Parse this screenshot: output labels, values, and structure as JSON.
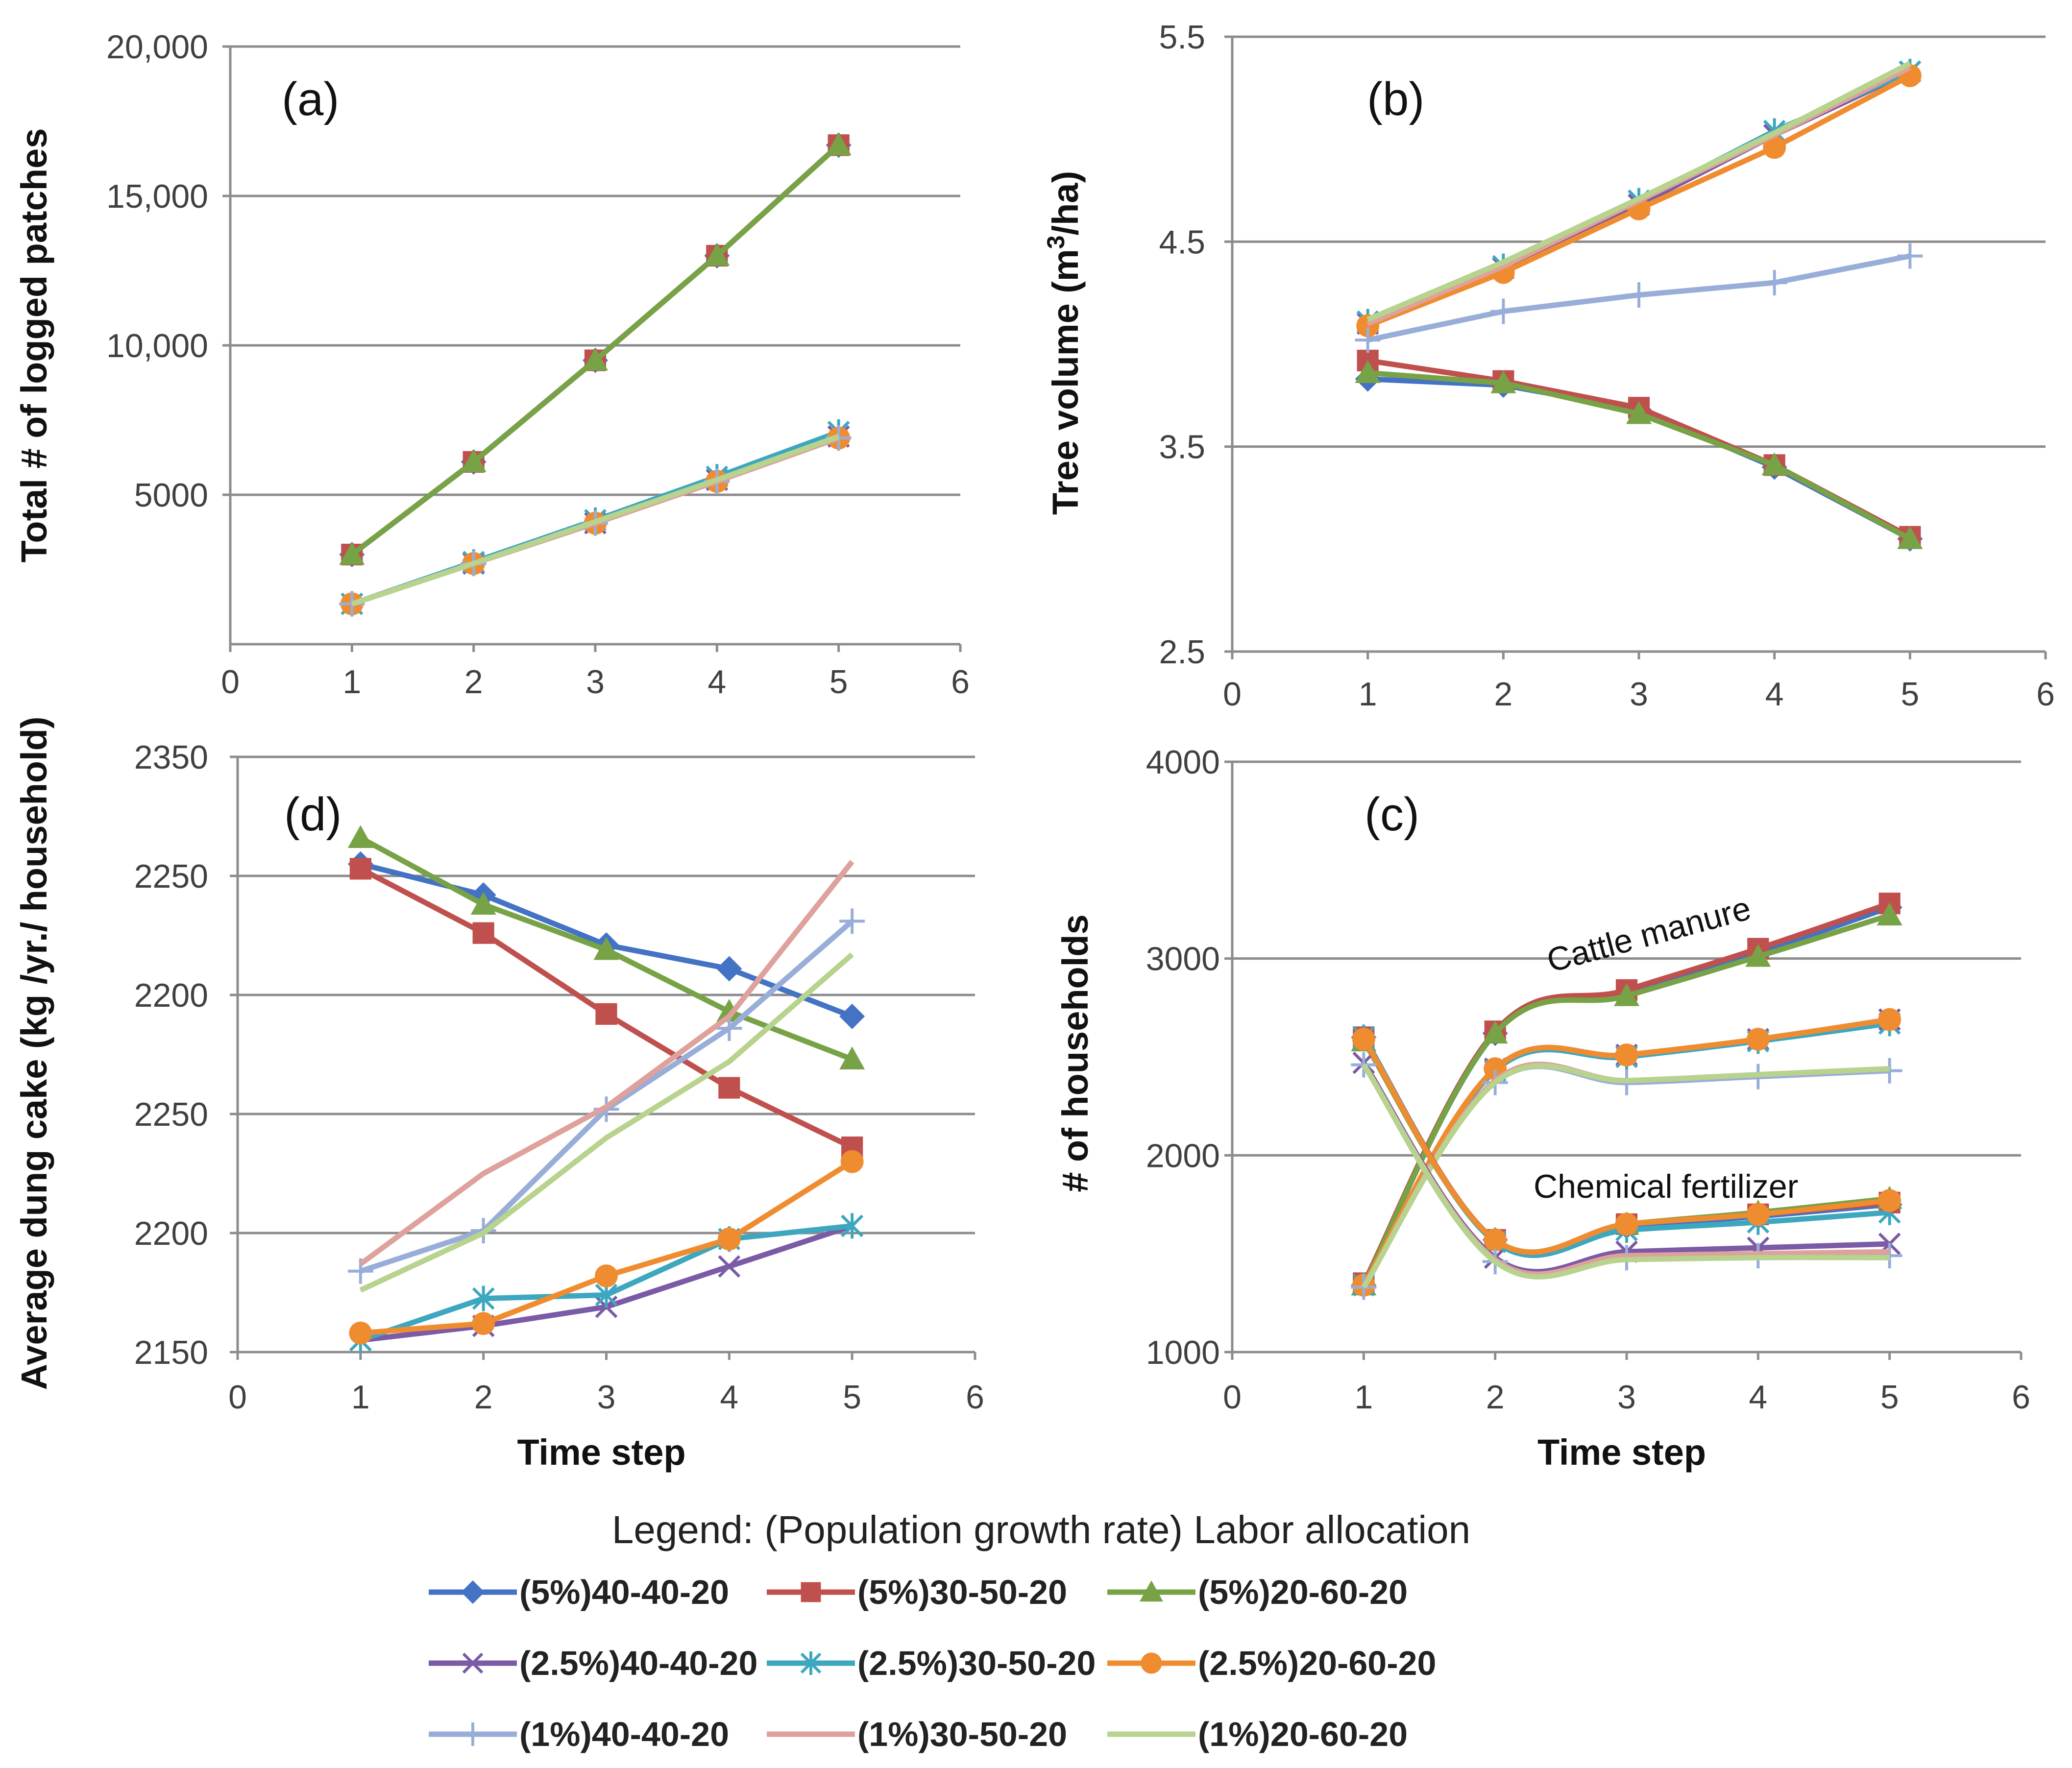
{
  "colors": {
    "s5_40": "#4472c4",
    "s5_30": "#c0504d",
    "s5_20": "#77a246",
    "s25_40": "#7b5aa6",
    "s25_30": "#3ea7c0",
    "s25_20": "#f08c30",
    "s1_40": "#98aed8",
    "s1_30": "#dea19c",
    "s1_20": "#b7d38e"
  },
  "legend": {
    "title": "Legend: (Population growth rate) Labor allocation",
    "items": [
      {
        "key": "s5_40",
        "label": "(5%)40-40-20",
        "marker": "diamond"
      },
      {
        "key": "s5_30",
        "label": "(5%)30-50-20",
        "marker": "square"
      },
      {
        "key": "s5_20",
        "label": "(5%)20-60-20",
        "marker": "triangle"
      },
      {
        "key": "s25_40",
        "label": "(2.5%)40-40-20",
        "marker": "x"
      },
      {
        "key": "s25_30",
        "label": "(2.5%)30-50-20",
        "marker": "star"
      },
      {
        "key": "s25_20",
        "label": "(2.5%)20-60-20",
        "marker": "circle"
      },
      {
        "key": "s1_40",
        "label": "(1%)40-40-20",
        "marker": "plus"
      },
      {
        "key": "s1_30",
        "label": "(1%)30-50-20",
        "marker": "none"
      },
      {
        "key": "s1_20",
        "label": "(1%)20-60-20",
        "marker": "none"
      }
    ]
  },
  "chart_data": [
    {
      "id": "a",
      "type": "line",
      "panel_label": "(a)",
      "ylabel": "Total # of logged patches",
      "xlabel": "",
      "xlim": [
        0,
        6
      ],
      "ylim": [
        0,
        20000
      ],
      "xticks": [
        0,
        1,
        2,
        3,
        4,
        5,
        6
      ],
      "yticks": [
        5000,
        10000,
        15000,
        20000
      ],
      "ytick_labels": [
        "5000",
        "10,000",
        "15,000",
        "20,000"
      ],
      "x": [
        1,
        2,
        3,
        4,
        5
      ],
      "series": [
        {
          "key": "s5_40",
          "name": "(5%)40-40-20",
          "values": [
            3000,
            6100,
            9500,
            13000,
            16700
          ]
        },
        {
          "key": "s5_30",
          "name": "(5%)30-50-20",
          "values": [
            3000,
            6100,
            9500,
            13000,
            16700
          ]
        },
        {
          "key": "s5_20",
          "name": "(5%)20-60-20",
          "values": [
            3000,
            6100,
            9500,
            13000,
            16700
          ]
        },
        {
          "key": "s25_40",
          "name": "(2.5%)40-40-20",
          "values": [
            1350,
            2700,
            4050,
            5500,
            6950
          ]
        },
        {
          "key": "s25_30",
          "name": "(2.5%)30-50-20",
          "values": [
            1350,
            2750,
            4150,
            5600,
            7100
          ]
        },
        {
          "key": "s25_20",
          "name": "(2.5%)20-60-20",
          "values": [
            1350,
            2700,
            4050,
            5450,
            6900
          ]
        },
        {
          "key": "s1_40",
          "name": "(1%)40-40-20",
          "values": [
            1350,
            2700,
            4050,
            5450,
            6900
          ]
        },
        {
          "key": "s1_30",
          "name": "(1%)30-50-20",
          "values": [
            1350,
            2700,
            4050,
            5450,
            6900
          ]
        },
        {
          "key": "s1_20",
          "name": "(1%)20-60-20",
          "values": [
            1350,
            2700,
            4100,
            5500,
            6950
          ]
        }
      ]
    },
    {
      "id": "b",
      "type": "line",
      "panel_label": "(b)",
      "ylabel": "Tree volume (m3/ha)",
      "ylabel_main": "Tree volume (m",
      "ylabel_sup": "3",
      "ylabel_tail": "/ha)",
      "xlabel": "",
      "xlim": [
        0,
        6
      ],
      "ylim": [
        2.5,
        5.5
      ],
      "xticks": [
        0,
        1,
        2,
        3,
        4,
        5,
        6
      ],
      "yticks": [
        2.5,
        3.5,
        4.5,
        5.5
      ],
      "ytick_labels": [
        "2.5",
        "3.5",
        "4.5",
        "5.5"
      ],
      "x": [
        1,
        2,
        3,
        4,
        5
      ],
      "series": [
        {
          "key": "s5_40",
          "name": "(5%)40-40-20",
          "values": [
            3.83,
            3.8,
            3.68,
            3.4,
            3.05
          ]
        },
        {
          "key": "s5_30",
          "name": "(5%)30-50-20",
          "values": [
            3.92,
            3.82,
            3.69,
            3.41,
            3.06
          ]
        },
        {
          "key": "s5_20",
          "name": "(5%)20-60-20",
          "values": [
            3.86,
            3.81,
            3.66,
            3.41,
            3.05
          ]
        },
        {
          "key": "s25_40",
          "name": "(2.5%)40-40-20",
          "values": [
            4.1,
            4.37,
            4.68,
            5.02,
            5.33
          ]
        },
        {
          "key": "s25_30",
          "name": "(2.5%)30-50-20",
          "values": [
            4.11,
            4.38,
            4.7,
            5.04,
            5.33
          ]
        },
        {
          "key": "s25_20",
          "name": "(2.5%)20-60-20",
          "values": [
            4.09,
            4.35,
            4.66,
            4.96,
            5.31
          ]
        },
        {
          "key": "s1_40",
          "name": "(1%)40-40-20",
          "values": [
            4.02,
            4.16,
            4.24,
            4.3,
            4.43
          ]
        },
        {
          "key": "s1_30",
          "name": "(1%)30-50-20",
          "values": [
            4.1,
            4.38,
            4.7,
            5.02,
            5.35
          ]
        },
        {
          "key": "s1_20",
          "name": "(1%)20-60-20",
          "values": [
            4.12,
            4.4,
            4.71,
            5.03,
            5.37
          ]
        }
      ]
    },
    {
      "id": "d",
      "type": "line",
      "panel_label": "(d)",
      "ylabel": "Average dung cake (kg /yr./ household)",
      "xlabel": "Time step",
      "xlim": [
        0,
        6
      ],
      "ylim": [
        0,
        5
      ],
      "xticks": [
        0,
        1,
        2,
        3,
        4,
        5,
        6
      ],
      "yticks": [
        0,
        1,
        2,
        3,
        4,
        5
      ],
      "ytick_labels": [
        "2150",
        "2200",
        "2250",
        "2200",
        "2250",
        "2350"
      ],
      "x": [
        1,
        2,
        3,
        4,
        5
      ],
      "series": [
        {
          "key": "s5_40",
          "name": "(5%)40-40-20",
          "values": [
            4.1,
            3.84,
            3.42,
            3.22,
            2.82
          ]
        },
        {
          "key": "s5_30",
          "name": "(5%)30-50-20",
          "values": [
            4.06,
            3.52,
            2.84,
            2.22,
            1.72
          ]
        },
        {
          "key": "s5_20",
          "name": "(5%)20-60-20",
          "values": [
            4.32,
            3.76,
            3.38,
            2.86,
            2.46
          ]
        },
        {
          "key": "s25_40",
          "name": "(2.5%)40-40-20",
          "values": [
            0.1,
            0.22,
            0.38,
            0.72,
            1.06
          ]
        },
        {
          "key": "s25_30",
          "name": "(2.5%)30-50-20",
          "values": [
            0.1,
            0.45,
            0.48,
            0.95,
            1.06
          ]
        },
        {
          "key": "s25_20",
          "name": "(2.5%)20-60-20",
          "values": [
            0.16,
            0.24,
            0.64,
            0.95,
            1.6
          ]
        },
        {
          "key": "s1_40",
          "name": "(1%)40-40-20",
          "values": [
            0.68,
            1.02,
            2.04,
            2.72,
            3.62
          ]
        },
        {
          "key": "s1_30",
          "name": "(1%)30-50-20",
          "values": [
            0.74,
            1.5,
            2.06,
            2.82,
            4.12
          ]
        },
        {
          "key": "s1_20",
          "name": "(1%)20-60-20",
          "values": [
            0.52,
            1.0,
            1.8,
            2.44,
            3.34
          ]
        }
      ]
    },
    {
      "id": "c",
      "type": "line",
      "panel_label": "(c)",
      "ylabel": "# of households",
      "xlabel": "Time step",
      "xlim": [
        0,
        6
      ],
      "ylim": [
        1000,
        4000
      ],
      "xticks": [
        0,
        1,
        2,
        3,
        4,
        5,
        6
      ],
      "yticks": [
        1000,
        2000,
        3000,
        4000
      ],
      "ytick_labels": [
        "1000",
        "2000",
        "3000",
        "4000"
      ],
      "annotations": [
        "Cattle manure",
        "Chemical fertilizer"
      ],
      "x": [
        1,
        2,
        3,
        4,
        5
      ],
      "series": [
        {
          "key": "s5_40",
          "name": "(5%)40-40-20 cattle manure",
          "values": [
            1340,
            2620,
            2830,
            3030,
            3260
          ]
        },
        {
          "key": "s5_30",
          "name": "(5%)30-50-20 cattle manure",
          "values": [
            1350,
            2630,
            2840,
            3050,
            3280
          ]
        },
        {
          "key": "s5_20",
          "name": "(5%)20-60-20 cattle manure",
          "values": [
            1340,
            2620,
            2810,
            3010,
            3220
          ]
        },
        {
          "key": "s25_40",
          "name": "(2.5%)40-40-20 cattle manure",
          "values": [
            1340,
            2440,
            2510,
            2590,
            2690
          ]
        },
        {
          "key": "s25_30",
          "name": "(2.5%)30-50-20 cattle manure",
          "values": [
            1340,
            2430,
            2500,
            2580,
            2670
          ]
        },
        {
          "key": "s25_20",
          "name": "(2.5%)20-60-20 cattle manure",
          "values": [
            1340,
            2440,
            2510,
            2590,
            2690
          ]
        },
        {
          "key": "s1_40",
          "name": "(1%)40-40-20 cattle manure",
          "values": [
            1330,
            2370,
            2370,
            2400,
            2430
          ]
        },
        {
          "key": "s1_30",
          "name": "(1%)30-50-20 cattle manure",
          "values": [
            1330,
            2380,
            2380,
            2410,
            2440
          ]
        },
        {
          "key": "s1_20",
          "name": "(1%)20-60-20 cattle manure",
          "values": [
            1330,
            2370,
            2380,
            2410,
            2440
          ]
        },
        {
          "key": "s5_40",
          "name": "(5%)40-40-20 chemical fertilizer",
          "values": [
            2600,
            1570,
            1640,
            1690,
            1750
          ]
        },
        {
          "key": "s5_30",
          "name": "(5%)30-50-20 chemical fertilizer",
          "values": [
            2600,
            1570,
            1650,
            1700,
            1760
          ]
        },
        {
          "key": "s5_20",
          "name": "(5%)20-60-20 chemical fertilizer",
          "values": [
            2580,
            1570,
            1650,
            1710,
            1780
          ]
        },
        {
          "key": "s25_40",
          "name": "(2.5%)40-40-20 chemical fertilizer",
          "values": [
            2470,
            1480,
            1510,
            1530,
            1550
          ]
        },
        {
          "key": "s25_30",
          "name": "(2.5%)30-50-20 chemical fertilizer",
          "values": [
            2600,
            1560,
            1620,
            1660,
            1710
          ]
        },
        {
          "key": "s25_20",
          "name": "(2.5%)20-60-20 chemical fertilizer",
          "values": [
            2590,
            1570,
            1650,
            1700,
            1770
          ]
        },
        {
          "key": "s1_40",
          "name": "(1%)40-40-20 chemical fertilizer",
          "values": [
            2460,
            1460,
            1480,
            1490,
            1490
          ]
        },
        {
          "key": "s1_30",
          "name": "(1%)30-50-20 chemical fertilizer",
          "values": [
            2460,
            1470,
            1490,
            1500,
            1510
          ]
        },
        {
          "key": "s1_20",
          "name": "(1%)20-60-20 chemical fertilizer",
          "values": [
            2460,
            1460,
            1470,
            1480,
            1480
          ]
        }
      ]
    }
  ]
}
